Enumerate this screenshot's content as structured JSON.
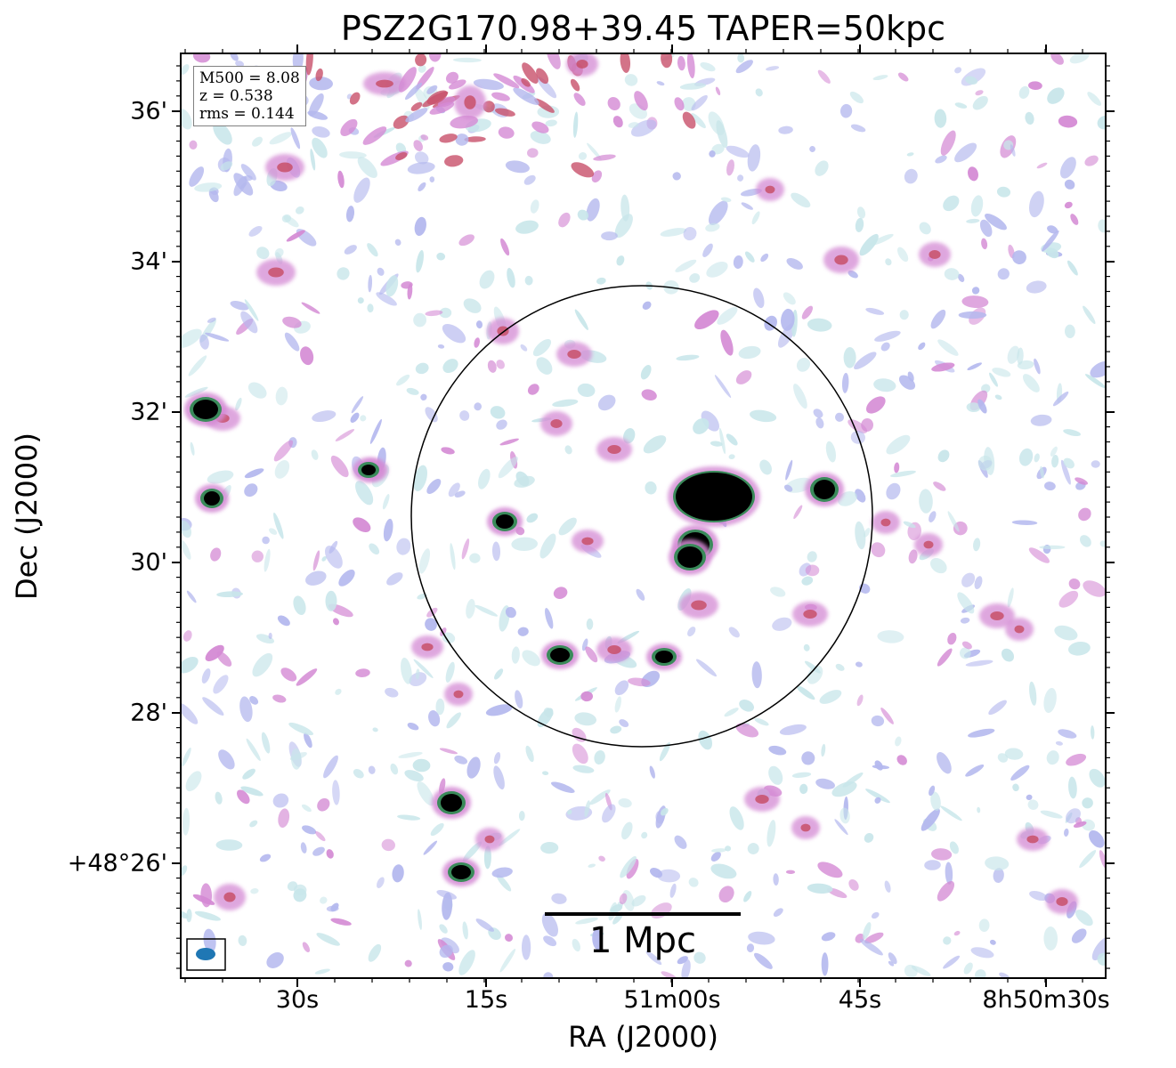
{
  "title": "PSZ2G170.98+39.45 TAPER=50kpc",
  "axes": {
    "xlabel": "RA (J2000)",
    "ylabel": "Dec (J2000)",
    "x_ticks": [
      "30s",
      "15s",
      "51m00s",
      "45s",
      "8h50m30s"
    ],
    "y_ticks": [
      "36'",
      "34'",
      "32'",
      "30'",
      "28'",
      "+48°26'"
    ]
  },
  "info": {
    "m500": "M500 = 8.08",
    "z": "z = 0.538",
    "rms": "rms = 0.144"
  },
  "scale_bar": {
    "label": "1 Mpc"
  },
  "colors": {
    "noise_low": "#c8e6ea",
    "noise_mid": "#b4b8ee",
    "emission": "#d48ad4",
    "emission_high": "#c8506a",
    "source_ring": "#3a8a5a",
    "source_core": "#000000",
    "beam": "#1f77b4",
    "circle": "#000000"
  }
}
